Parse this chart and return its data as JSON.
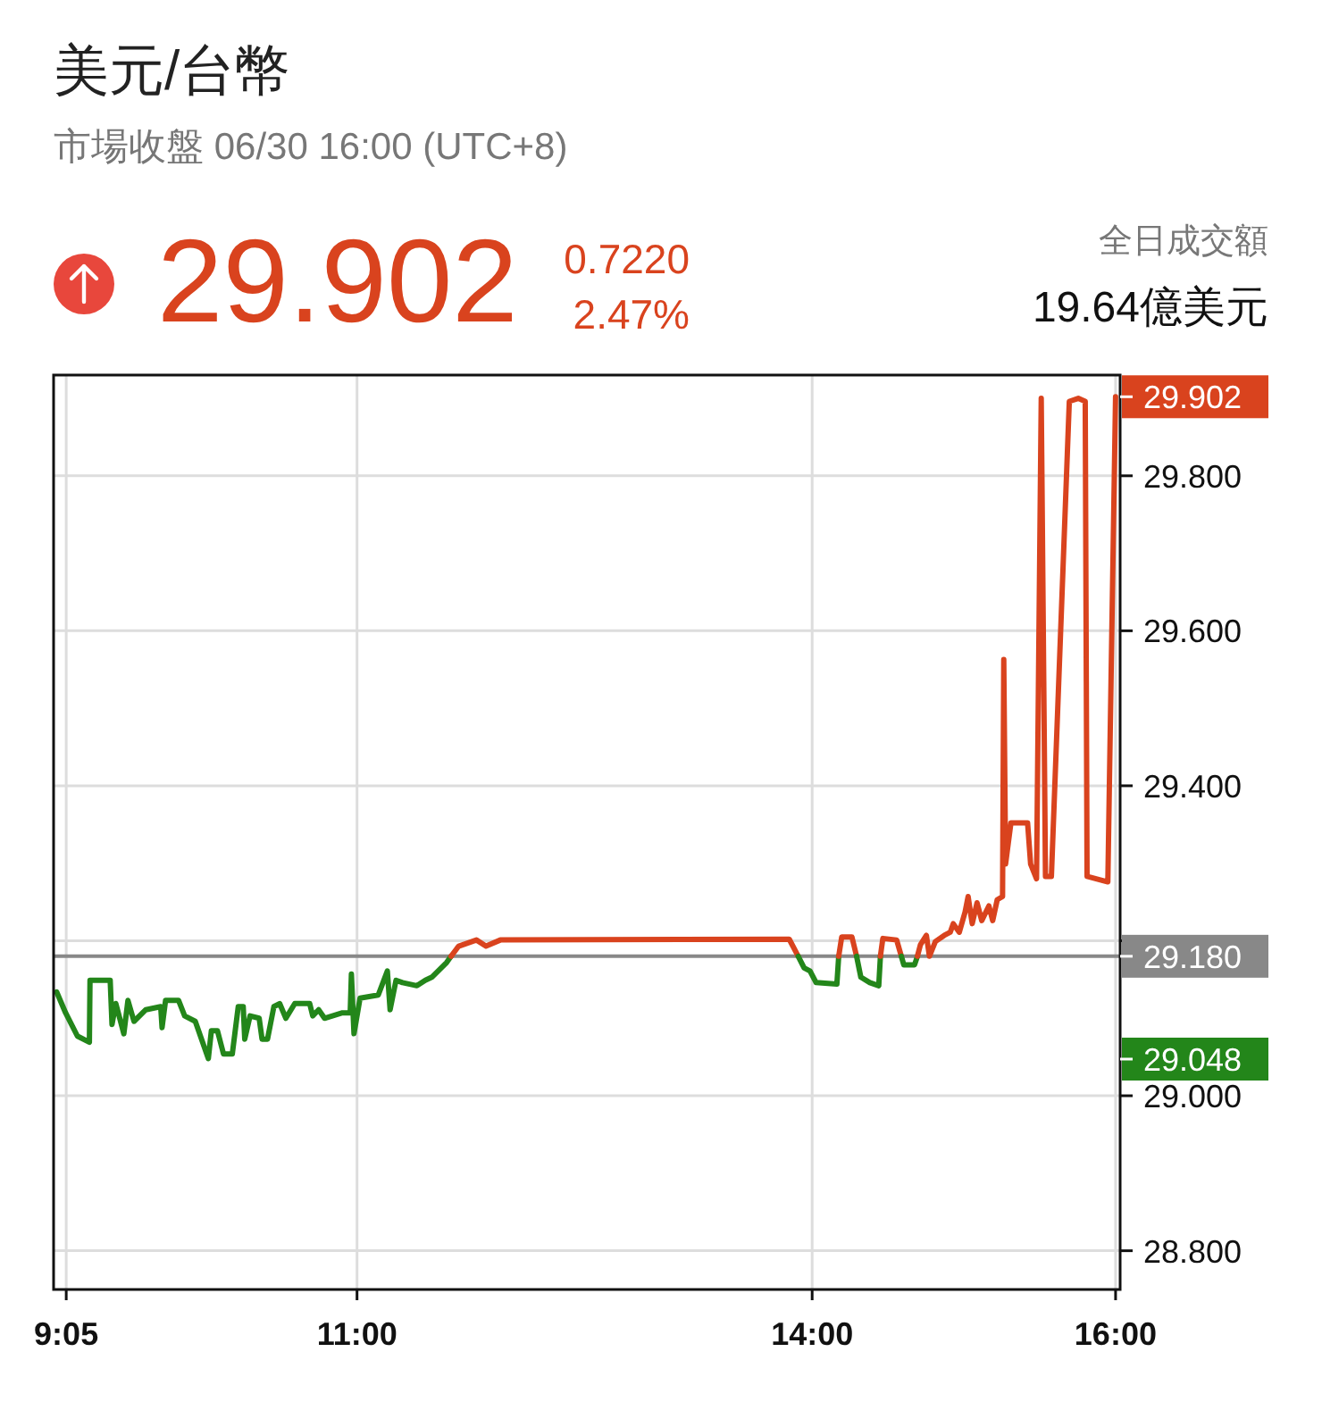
{
  "chart_data": {
    "type": "line",
    "title": "美元/台幣",
    "subtitle": "市場收盤 06/30 16:00 (UTC+8)",
    "annotations": [
      "29.902",
      "0.7220",
      "2.47%",
      "全日成交額",
      "19.64億美元",
      {
        "text": "29.902",
        "x": 16.0,
        "y": 29.902
      },
      "29.048"
    ],
    "xlim": [
      9.0,
      16.03
    ],
    "xticks": [
      {
        "value": 9.0833,
        "label": "9:05"
      },
      {
        "value": 11,
        "label": "11:00"
      },
      {
        "value": 14,
        "label": "14:00"
      },
      {
        "value": 16,
        "label": "16:00"
      }
    ],
    "ylim": [
      28.75,
      29.93
    ],
    "yticks": [
      {
        "value": 28.8,
        "label": "28.800"
      },
      {
        "value": 29.0,
        "label": "29.000"
      },
      {
        "value": 29.2,
        "label": null
      },
      {
        "value": 29.4,
        "label": "29.400"
      },
      {
        "value": 29.6,
        "label": "29.600"
      },
      {
        "value": 29.8,
        "label": "29.800"
      }
    ],
    "grid": true,
    "line_style": "solid",
    "ref_lines": [
      {
        "axis": "y",
        "value": 29.18,
        "label": "29.180",
        "color": "#888888",
        "line_style": "solid"
      }
    ],
    "series": [
      {
        "color": "#23861a",
        "x": [
          9.02,
          9.079,
          9.157,
          9.236,
          9.24,
          9.373,
          9.385,
          9.41,
          9.463,
          9.49,
          9.53,
          9.608,
          9.706,
          9.715,
          9.738,
          9.824,
          9.864,
          9.934,
          10.02,
          10.04,
          10.08,
          10.12,
          10.178,
          10.217,
          10.25,
          10.26,
          10.295,
          10.355,
          10.374,
          10.41,
          10.452,
          10.49,
          10.531,
          10.59,
          10.688,
          10.708,
          10.747,
          10.786,
          10.904,
          10.955,
          10.963,
          10.98,
          11.02,
          11.14,
          11.2,
          11.218,
          11.257,
          11.3,
          11.395,
          11.45,
          11.493,
          11.591,
          11.62
        ],
        "values": [
          29.134,
          29.107,
          29.077,
          29.069,
          29.149,
          29.149,
          29.092,
          29.119,
          29.08,
          29.123,
          29.096,
          29.111,
          29.115,
          29.088,
          29.123,
          29.123,
          29.103,
          29.096,
          29.048,
          29.084,
          29.084,
          29.054,
          29.054,
          29.115,
          29.115,
          29.073,
          29.103,
          29.1,
          29.073,
          29.073,
          29.115,
          29.119,
          29.1,
          29.119,
          29.119,
          29.103,
          29.111,
          29.1,
          29.107,
          29.107,
          29.157,
          29.08,
          29.126,
          29.13,
          29.161,
          29.111,
          29.149,
          29.146,
          29.142,
          29.149,
          29.153,
          29.172,
          29.18
        ]
      },
      {
        "color": "#d9431e",
        "x": [
          11.62,
          11.67,
          11.787,
          11.85,
          11.945,
          13.849,
          13.908
        ],
        "values": [
          29.18,
          29.193,
          29.201,
          29.193,
          29.201,
          29.202,
          29.18
        ]
      },
      {
        "color": "#23861a",
        "x": [
          13.908,
          13.947,
          13.986,
          14.026,
          14.163,
          14.175
        ],
        "values": [
          29.18,
          29.165,
          29.161,
          29.146,
          29.144,
          29.18
        ]
      },
      {
        "color": "#d9431e",
        "x": [
          14.175,
          14.195,
          14.262,
          14.293
        ],
        "values": [
          29.18,
          29.205,
          29.205,
          29.18
        ]
      },
      {
        "color": "#23861a",
        "x": [
          14.293,
          14.321,
          14.38,
          14.439,
          14.45
        ],
        "values": [
          29.18,
          29.153,
          29.146,
          29.142,
          29.18
        ]
      },
      {
        "color": "#d9431e",
        "x": [
          14.45,
          14.466,
          14.557,
          14.588
        ],
        "values": [
          29.18,
          29.203,
          29.201,
          29.18
        ]
      },
      {
        "color": "#23861a",
        "x": [
          14.588,
          14.604,
          14.675,
          14.694
        ],
        "values": [
          29.18,
          29.169,
          29.169,
          29.18
        ]
      },
      {
        "color": "#d9431e",
        "x": [
          14.694,
          14.714,
          14.753,
          14.773,
          14.812,
          14.871,
          14.91,
          14.93,
          14.97,
          15.008,
          15.028,
          15.055,
          15.087,
          15.118,
          15.165,
          15.19,
          15.22,
          15.255,
          15.263,
          15.275,
          15.31,
          15.42,
          15.44,
          15.479,
          15.51,
          15.538,
          15.577,
          15.695,
          15.754,
          15.8,
          15.812,
          15.949,
          16.0
        ],
        "values": [
          29.18,
          29.195,
          29.207,
          29.18,
          29.199,
          29.207,
          29.211,
          29.222,
          29.211,
          29.237,
          29.257,
          29.222,
          29.249,
          29.226,
          29.245,
          29.226,
          29.253,
          29.257,
          29.563,
          29.299,
          29.352,
          29.352,
          29.299,
          29.28,
          29.9,
          29.283,
          29.283,
          29.896,
          29.9,
          29.896,
          29.283,
          29.276,
          29.902
        ]
      }
    ]
  }
}
